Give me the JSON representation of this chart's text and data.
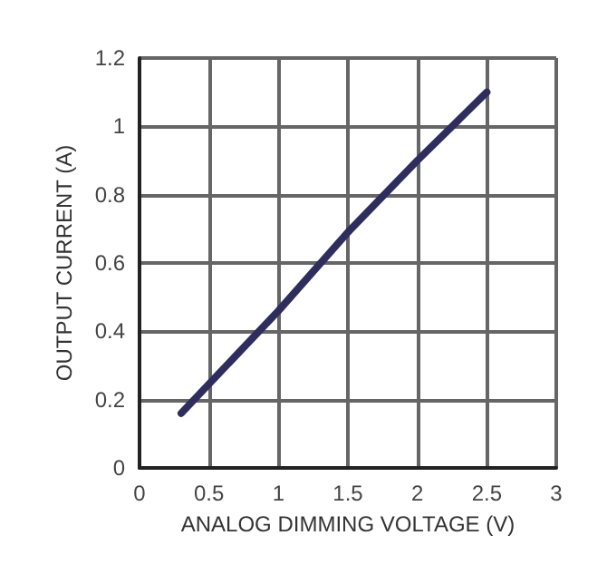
{
  "chart_data": {
    "type": "line",
    "xlabel": "ANALOG DIMMING VOLTAGE (V)",
    "ylabel": "OUTPUT CURRENT (A)",
    "x": [
      0.3,
      1,
      1.5,
      2,
      2.5
    ],
    "series": [
      {
        "color": "#2e2d5e",
        "values": [
          0.16,
          0.46,
          0.69,
          0.9,
          1.1
        ]
      }
    ],
    "xlim": [
      0,
      3
    ],
    "xticks": [
      0,
      0.5,
      1,
      1.5,
      2,
      2.5,
      3
    ],
    "ylim": [
      0,
      1.2
    ],
    "yticks": [
      0,
      0.2,
      0.4,
      0.6,
      0.8,
      1,
      1.2
    ],
    "grid": true,
    "marker": "none",
    "line_style": "solid"
  }
}
